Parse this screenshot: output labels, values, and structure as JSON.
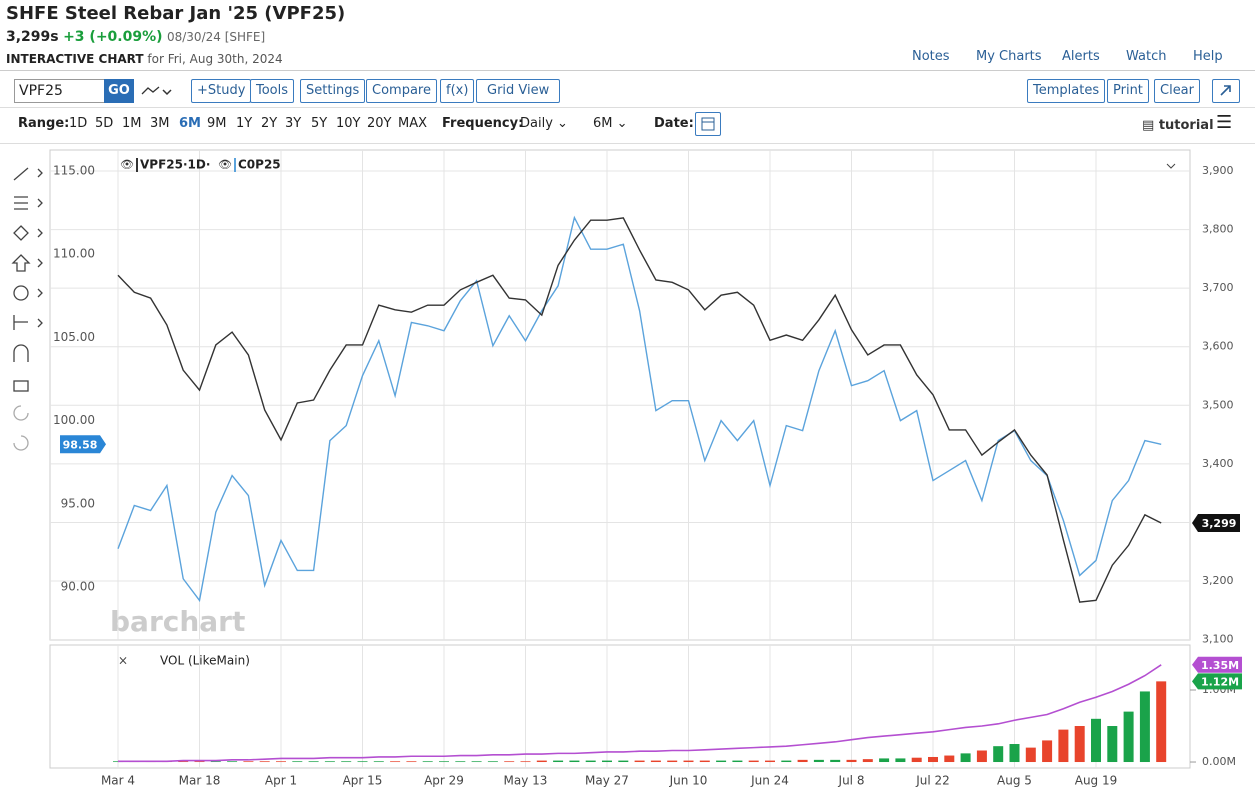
{
  "header": {
    "title": "SHFE Steel Rebar Jan '25 (VPF25)",
    "price": "3,299s",
    "change": "+3 (+0.09%)",
    "date": "08/30/24 [SHFE]",
    "chart_label": "INTERACTIVE CHART",
    "chart_for": "for Fri, Aug 30th, 2024",
    "links": [
      "Notes",
      "My Charts",
      "Alerts",
      "Watch",
      "Help"
    ]
  },
  "toolbar": {
    "symbol": "VPF25",
    "go": "GO",
    "buttons": [
      "+Study",
      "Tools",
      "Settings",
      "Compare",
      "f(x)",
      "Grid View"
    ],
    "right_buttons": [
      "Templates",
      "Print",
      "Clear"
    ]
  },
  "range_bar": {
    "range_label": "Range:",
    "ranges": [
      "1D",
      "5D",
      "1M",
      "3M",
      "6M",
      "9M",
      "1Y",
      "2Y",
      "3Y",
      "5Y",
      "10Y",
      "20Y",
      "MAX"
    ],
    "active_range": "6M",
    "frequency_label": "Frequency:",
    "frequency": "Daily",
    "period": "6M",
    "date_label": "Date:",
    "tutorial": "tutorial"
  },
  "watermark": "barchart",
  "chart_data": {
    "type": "line",
    "categories": [
      "Mar 4",
      null,
      null,
      null,
      null,
      "Mar 18",
      null,
      null,
      null,
      null,
      "Apr 1",
      null,
      null,
      null,
      null,
      "Apr 15",
      null,
      null,
      null,
      null,
      "Apr 29",
      null,
      null,
      null,
      null,
      "May 13",
      null,
      null,
      null,
      null,
      "May 27",
      null,
      null,
      null,
      null,
      "Jun 10",
      null,
      null,
      null,
      null,
      "Jun 24",
      null,
      null,
      null,
      null,
      "Jul 8",
      null,
      null,
      null,
      null,
      "Jul 22",
      null,
      null,
      null,
      null,
      "Aug 5",
      null,
      null,
      null,
      null,
      "Aug 19",
      null,
      null,
      null,
      null
    ],
    "series": [
      {
        "name": "VPF25·1D·",
        "color": "#333333",
        "axis": "y2",
        "values": [
          3722,
          3693,
          3683,
          3637,
          3560,
          3526,
          3603,
          3625,
          3586,
          3492,
          3441,
          3504,
          3509,
          3560,
          3603,
          3603,
          3671,
          3663,
          3659,
          3671,
          3671,
          3697,
          3710,
          3722,
          3683,
          3680,
          3654,
          3739,
          3782,
          3816,
          3816,
          3820,
          3765,
          3714,
          3710,
          3697,
          3663,
          3688,
          3693,
          3671,
          3611,
          3620,
          3611,
          3646,
          3688,
          3629,
          3586,
          3603,
          3603,
          3552,
          3518,
          3458,
          3458,
          3415,
          3437,
          3458,
          3415,
          3381,
          3270,
          3164,
          3167,
          3227,
          3261,
          3313,
          3299
        ],
        "value_labels": [
          null,
          null,
          null,
          null,
          null,
          null,
          null,
          null,
          null,
          null,
          null,
          null,
          null,
          null,
          null,
          null,
          null,
          null,
          null,
          null,
          null,
          null,
          null,
          null,
          null,
          null,
          null,
          null,
          null,
          null,
          null,
          null,
          null,
          null,
          null,
          null,
          null,
          null,
          null,
          null,
          null,
          null,
          null,
          null,
          null,
          null,
          null,
          null,
          null,
          null,
          null,
          null,
          null,
          null,
          null,
          null,
          null,
          null,
          null,
          null,
          null,
          null,
          null,
          null,
          "3,299"
        ]
      },
      {
        "name": "C0P25",
        "color": "#5ba3dc",
        "values": [
          92.3,
          94.9,
          94.6,
          96.1,
          90.5,
          89.2,
          94.5,
          96.7,
          95.5,
          90.1,
          92.8,
          91.0,
          91.0,
          98.8,
          99.7,
          102.7,
          104.8,
          101.5,
          105.9,
          105.7,
          105.4,
          107.2,
          108.4,
          104.5,
          106.3,
          104.8,
          106.6,
          108.1,
          112.2,
          110.3,
          110.3,
          110.6,
          106.6,
          100.6,
          101.2,
          101.2,
          97.6,
          100.0,
          98.8,
          100.0,
          96.1,
          99.7,
          99.4,
          103.0,
          105.4,
          102.1,
          102.4,
          103.0,
          100.0,
          100.6,
          96.4,
          97.0,
          97.6,
          95.2,
          98.8,
          99.4,
          97.6,
          96.7,
          94.0,
          90.7,
          91.6,
          95.2,
          96.4,
          98.8,
          98.58
        ]
      }
    ],
    "ylim": [
      86.82,
      116.26
    ],
    "yticks": [
      {
        "value": 90,
        "label": "90.00"
      },
      {
        "value": 95,
        "label": "95.00"
      },
      {
        "value": 100,
        "label": "100.00"
      },
      {
        "value": 105,
        "label": "105.00"
      },
      {
        "value": 110,
        "label": "110.00"
      },
      {
        "value": 115,
        "label": "115.00"
      }
    ],
    "y2lim": [
      3099.3,
      3935.9
    ],
    "y2ticks": [
      {
        "value": 3100,
        "label": "3,100"
      },
      {
        "value": 3200,
        "label": "3,200"
      },
      {
        "value": 3300,
        "label": "3,300"
      },
      {
        "value": 3400,
        "label": "3,400"
      },
      {
        "value": 3500,
        "label": "3,500"
      },
      {
        "value": 3600,
        "label": "3,600"
      },
      {
        "value": 3700,
        "label": "3,700"
      },
      {
        "value": 3800,
        "label": "3,800"
      },
      {
        "value": 3900,
        "label": "3,900"
      }
    ],
    "grid": true
  },
  "volume_data": {
    "type": "bar",
    "title": "VOL (LikeMain)",
    "up_color": "#1aa34a",
    "down_color": "#e8442c",
    "ma_color": "#b44fd1",
    "values": [
      0.01,
      0.01,
      0.01,
      0.01,
      0.01,
      0.01,
      0.01,
      0.01,
      0.01,
      0.01,
      0.01,
      0.01,
      0.01,
      0.01,
      0.01,
      0.01,
      0.01,
      0.01,
      0.01,
      0.01,
      0.01,
      0.01,
      0.01,
      0.01,
      0.01,
      0.01,
      0.02,
      0.02,
      0.02,
      0.02,
      0.02,
      0.02,
      0.02,
      0.02,
      0.02,
      0.02,
      0.02,
      0.02,
      0.02,
      0.02,
      0.02,
      0.02,
      0.03,
      0.03,
      0.03,
      0.03,
      0.04,
      0.05,
      0.05,
      0.06,
      0.07,
      0.09,
      0.12,
      0.16,
      0.22,
      0.25,
      0.2,
      0.3,
      0.45,
      0.5,
      0.6,
      0.5,
      0.7,
      0.98,
      1.12
    ],
    "value_labels": [
      null,
      null,
      null,
      null,
      null,
      null,
      null,
      null,
      null,
      null,
      null,
      null,
      null,
      null,
      null,
      null,
      null,
      null,
      null,
      null,
      null,
      null,
      null,
      null,
      null,
      null,
      null,
      null,
      null,
      null,
      null,
      null,
      null,
      null,
      null,
      null,
      null,
      null,
      null,
      null,
      null,
      null,
      null,
      null,
      null,
      null,
      null,
      null,
      null,
      null,
      null,
      null,
      null,
      null,
      null,
      null,
      null,
      null,
      null,
      null,
      null,
      null,
      null,
      null,
      "1.12M"
    ],
    "ma_values": [
      0.01,
      0.01,
      0.01,
      0.01,
      0.02,
      0.02,
      0.02,
      0.03,
      0.03,
      0.04,
      0.05,
      0.05,
      0.05,
      0.06,
      0.06,
      0.06,
      0.07,
      0.07,
      0.08,
      0.08,
      0.08,
      0.09,
      0.09,
      0.1,
      0.1,
      0.11,
      0.11,
      0.12,
      0.12,
      0.13,
      0.14,
      0.14,
      0.15,
      0.15,
      0.16,
      0.16,
      0.17,
      0.18,
      0.19,
      0.2,
      0.21,
      0.22,
      0.24,
      0.26,
      0.28,
      0.31,
      0.34,
      0.36,
      0.38,
      0.4,
      0.42,
      0.45,
      0.48,
      0.5,
      0.53,
      0.58,
      0.62,
      0.66,
      0.74,
      0.83,
      0.9,
      0.98,
      1.08,
      1.2,
      1.35
    ],
    "ma_value_labels": [
      null,
      null,
      null,
      null,
      null,
      null,
      null,
      null,
      null,
      null,
      null,
      null,
      null,
      null,
      null,
      null,
      null,
      null,
      null,
      null,
      null,
      null,
      null,
      null,
      null,
      null,
      null,
      null,
      null,
      null,
      null,
      null,
      null,
      null,
      null,
      null,
      null,
      null,
      null,
      null,
      null,
      null,
      null,
      null,
      null,
      null,
      null,
      null,
      null,
      null,
      null,
      null,
      null,
      null,
      null,
      null,
      null,
      null,
      null,
      null,
      null,
      null,
      null,
      null,
      "1.35M"
    ],
    "ylim": [
      -0.083,
      1.625
    ],
    "yticks": [
      {
        "value": 0,
        "label": "0.00M"
      },
      {
        "value": 1,
        "label": "1.00M"
      }
    ]
  }
}
